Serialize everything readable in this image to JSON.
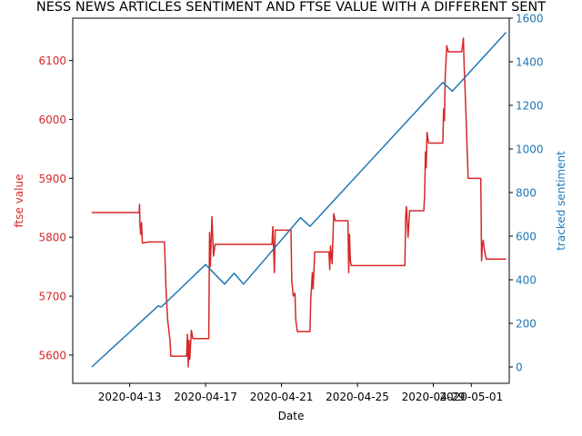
{
  "chart_data": {
    "type": "line",
    "title": "NESS NEWS ARTICLES SENTIMENT AND FTSE VALUE WITH A DIFFERENT SENT",
    "xlabel": "Date",
    "x_ticks": [
      "2020-04-13",
      "2020-04-17",
      "2020-04-21",
      "2020-04-25",
      "2020-04-29",
      "2020-05-01"
    ],
    "x_range": [
      "2020-04-10T00:00",
      "2020-05-03T00:00"
    ],
    "grid": false,
    "left_axis": {
      "label": "ftse value",
      "color": "#d62728",
      "ylim": [
        5552,
        6172
      ],
      "ticks": [
        "5600",
        "5700",
        "5800",
        "5900",
        "6000",
        "6100"
      ]
    },
    "right_axis": {
      "label": "tracked sentiment",
      "color": "#1f77b4",
      "ylim": [
        -75,
        1600
      ],
      "ticks": [
        "0",
        "200",
        "400",
        "600",
        "800",
        "1000",
        "1200",
        "1400",
        "1600"
      ]
    },
    "series": [
      {
        "axis": "left",
        "color": "#d62728",
        "points": [
          [
            "2020-04-11T00:00",
            5842
          ],
          [
            "2020-04-13T12:00",
            5842
          ],
          [
            "2020-04-13T12:30",
            5856
          ],
          [
            "2020-04-13T13:00",
            5820
          ],
          [
            "2020-04-13T14:00",
            5805
          ],
          [
            "2020-04-13T15:00",
            5825
          ],
          [
            "2020-04-13T16:00",
            5790
          ],
          [
            "2020-04-14T00:00",
            5792
          ],
          [
            "2020-04-14T20:00",
            5792
          ],
          [
            "2020-04-14T22:00",
            5710
          ],
          [
            "2020-04-15T00:00",
            5660
          ],
          [
            "2020-04-15T03:00",
            5625
          ],
          [
            "2020-04-15T04:00",
            5598
          ],
          [
            "2020-04-15T12:00",
            5598
          ],
          [
            "2020-04-16T00:00",
            5598
          ],
          [
            "2020-04-16T01:00",
            5635
          ],
          [
            "2020-04-16T02:00",
            5580
          ],
          [
            "2020-04-16T03:00",
            5625
          ],
          [
            "2020-04-16T04:00",
            5593
          ],
          [
            "2020-04-16T06:00",
            5642
          ],
          [
            "2020-04-16T08:00",
            5628
          ],
          [
            "2020-04-17T04:00",
            5628
          ],
          [
            "2020-04-17T05:00",
            5808
          ],
          [
            "2020-04-17T06:00",
            5750
          ],
          [
            "2020-04-17T08:00",
            5835
          ],
          [
            "2020-04-17T10:00",
            5768
          ],
          [
            "2020-04-17T12:00",
            5788
          ],
          [
            "2020-04-20T12:00",
            5788
          ],
          [
            "2020-04-20T13:00",
            5818
          ],
          [
            "2020-04-20T14:00",
            5780
          ],
          [
            "2020-04-20T15:00",
            5740
          ],
          [
            "2020-04-20T16:00",
            5812
          ],
          [
            "2020-04-21T12:00",
            5812
          ],
          [
            "2020-04-21T13:00",
            5725
          ],
          [
            "2020-04-21T15:00",
            5700
          ],
          [
            "2020-04-21T17:00",
            5705
          ],
          [
            "2020-04-21T18:00",
            5660
          ],
          [
            "2020-04-21T20:00",
            5640
          ],
          [
            "2020-04-22T12:00",
            5640
          ],
          [
            "2020-04-22T13:00",
            5695
          ],
          [
            "2020-04-22T15:00",
            5740
          ],
          [
            "2020-04-22T16:00",
            5712
          ],
          [
            "2020-04-22T18:00",
            5775
          ],
          [
            "2020-04-23T12:00",
            5775
          ],
          [
            "2020-04-23T13:00",
            5745
          ],
          [
            "2020-04-23T14:00",
            5785
          ],
          [
            "2020-04-23T16:00",
            5755
          ],
          [
            "2020-04-23T18:00",
            5840
          ],
          [
            "2020-04-23T20:00",
            5828
          ],
          [
            "2020-04-24T12:00",
            5828
          ],
          [
            "2020-04-24T13:00",
            5740
          ],
          [
            "2020-04-24T14:00",
            5805
          ],
          [
            "2020-04-24T15:00",
            5762
          ],
          [
            "2020-04-24T16:00",
            5752
          ],
          [
            "2020-04-27T12:00",
            5752
          ],
          [
            "2020-04-27T13:00",
            5835
          ],
          [
            "2020-04-27T14:00",
            5852
          ],
          [
            "2020-04-27T16:00",
            5800
          ],
          [
            "2020-04-27T18:00",
            5845
          ],
          [
            "2020-04-27T20:00",
            5845
          ],
          [
            "2020-04-28T12:00",
            5845
          ],
          [
            "2020-04-28T13:00",
            5872
          ],
          [
            "2020-04-28T14:00",
            5945
          ],
          [
            "2020-04-28T15:00",
            5918
          ],
          [
            "2020-04-28T16:00",
            5978
          ],
          [
            "2020-04-28T18:00",
            5960
          ],
          [
            "2020-04-29T12:00",
            5960
          ],
          [
            "2020-04-29T13:00",
            6018
          ],
          [
            "2020-04-29T14:00",
            5998
          ],
          [
            "2020-04-29T15:00",
            6072
          ],
          [
            "2020-04-29T17:00",
            6125
          ],
          [
            "2020-04-29T19:00",
            6115
          ],
          [
            "2020-04-30T12:00",
            6115
          ],
          [
            "2020-04-30T14:00",
            6138
          ],
          [
            "2020-04-30T15:00",
            6090
          ],
          [
            "2020-04-30T17:00",
            6020
          ],
          [
            "2020-04-30T19:00",
            5940
          ],
          [
            "2020-04-30T20:00",
            5900
          ],
          [
            "2020-05-01T12:00",
            5900
          ],
          [
            "2020-05-01T13:00",
            5760
          ],
          [
            "2020-05-01T14:00",
            5785
          ],
          [
            "2020-05-01T15:00",
            5795
          ],
          [
            "2020-05-01T17:00",
            5775
          ],
          [
            "2020-05-01T19:00",
            5763
          ],
          [
            "2020-05-02T20:00",
            5763
          ]
        ]
      },
      {
        "axis": "right",
        "color": "#1f77b4",
        "points": [
          [
            "2020-04-11T00:00",
            0
          ],
          [
            "2020-04-14T12:00",
            280
          ],
          [
            "2020-04-14T16:00",
            275
          ],
          [
            "2020-04-17T00:00",
            470
          ],
          [
            "2020-04-18T00:00",
            380
          ],
          [
            "2020-04-18T12:00",
            430
          ],
          [
            "2020-04-19T00:00",
            380
          ],
          [
            "2020-04-22T00:00",
            685
          ],
          [
            "2020-04-22T12:00",
            645
          ],
          [
            "2020-04-29T12:00",
            1305
          ],
          [
            "2020-04-30T00:00",
            1265
          ],
          [
            "2020-05-02T20:00",
            1535
          ]
        ]
      }
    ]
  }
}
